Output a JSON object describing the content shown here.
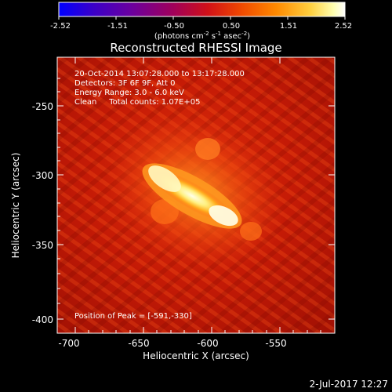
{
  "colorbar": {
    "ticks": [
      "-2.52",
      "-1.51",
      "-0.50",
      "0.50",
      "1.51",
      "2.52"
    ],
    "units_label": "(photons cm",
    "units_exp1": "-2",
    "units_mid": " s",
    "units_exp2": "-1",
    "units_mid2": " asec",
    "units_exp3": "-2",
    "units_end": ")",
    "palette": [
      "#0000ff",
      "#3a00c8",
      "#6a00a0",
      "#a0005a",
      "#d01018",
      "#f04a00",
      "#ff8a00",
      "#ffd040",
      "#ffffb0",
      "#ffffff"
    ]
  },
  "plot": {
    "title": "Reconstructed RHESSI Image",
    "info_lines": [
      "20-Oct-2014 13:07:28.000 to 13:17:28.000",
      "Detectors: 3F 6F 9F, Att 0",
      "Energy Range: 3.0 - 6.0 keV",
      "Clean     Total counts: 1.07E+05"
    ],
    "peak_label": "Position of Peak = [-591,-330]",
    "x_axis_label": "Heliocentric X (arcsec)",
    "y_axis_label": "Heliocentric Y (arcsec)",
    "x_ticks": [
      "-700",
      "-650",
      "-600",
      "-550"
    ],
    "y_ticks": [
      "-250",
      "-300",
      "-350",
      "-400"
    ],
    "colors": {
      "background": "#000000",
      "image_base": "#c81a06",
      "flare_core": "#fff8c0"
    }
  },
  "footer": {
    "timestamp": "2-Jul-2017 12:27"
  }
}
